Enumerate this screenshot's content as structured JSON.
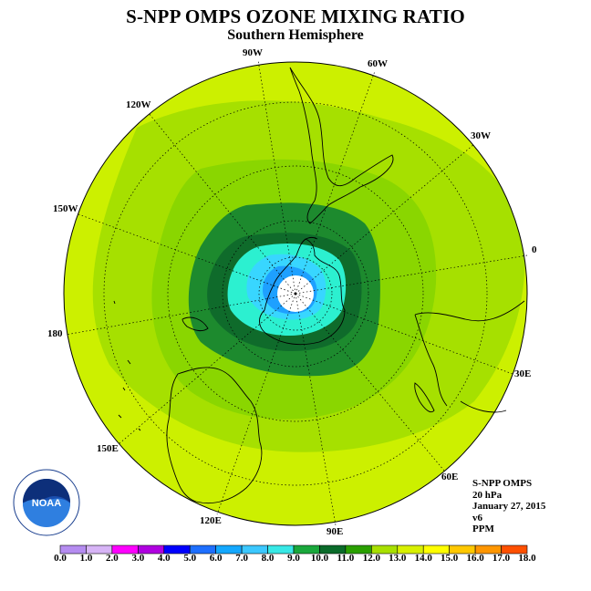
{
  "title": "S-NPP OMPS OZONE MIXING RATIO",
  "subtitle": "Southern Hemisphere",
  "longitude_labels": [
    "90W",
    "60W",
    "30W",
    "0",
    "30E",
    "60E",
    "90E",
    "120E",
    "150E",
    "180",
    "150W",
    "120W"
  ],
  "info": {
    "instrument": "S-NPP OMPS",
    "level": "20 hPa",
    "date": "January 27, 2015",
    "version": "v6",
    "units": "PPM"
  },
  "logo": {
    "name": "noaa-logo",
    "text": "NOAA"
  },
  "colorbar": {
    "ticks": [
      "0.0",
      "1.0",
      "2.0",
      "3.0",
      "4.0",
      "5.0",
      "6.0",
      "7.0",
      "8.0",
      "9.0",
      "10.0",
      "11.0",
      "12.0",
      "13.0",
      "14.0",
      "15.0",
      "16.0",
      "17.0",
      "18.0"
    ],
    "colors": [
      "#b58cf0",
      "#d7b4f6",
      "#ff00ff",
      "#b000e0",
      "#0000ff",
      "#1e6fff",
      "#14a8ff",
      "#3cc8ff",
      "#38e8e6",
      "#1aa83c",
      "#0a6b2a",
      "#2aa000",
      "#a8e000",
      "#d8f000",
      "#ffff00",
      "#ffc800",
      "#ff9600",
      "#ff5000",
      "#ff0000",
      "#8b5a2b"
    ]
  },
  "map_colors": {
    "level_12_13": "#ccf000",
    "level_11_12": "#a6e000",
    "level_10_11": "#8ad600",
    "level_9_10": "#1d8a2e",
    "level_8_9": "#0f6b2b",
    "level_7_8": "#2cf0d0",
    "level_6_7": "#38d6ff",
    "level_5_6": "#1ea0ff",
    "polar_night": "#ffffff"
  }
}
